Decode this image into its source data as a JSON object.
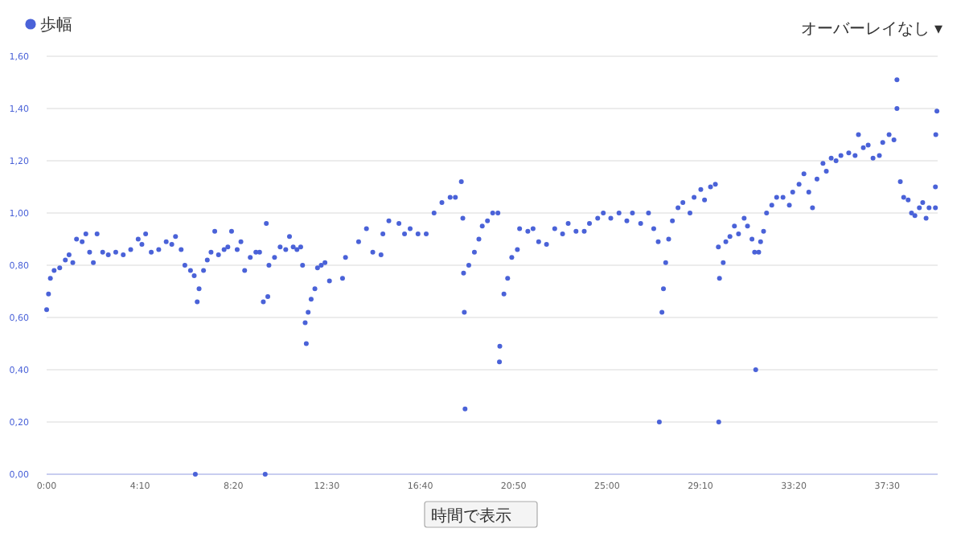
{
  "chart_data": {
    "type": "scatter",
    "marker": "circle",
    "grid": "y",
    "legend": "top left",
    "annotations": [
      "オーバーレイなし ▾",
      "時間で表示"
    ],
    "xlim": [
      0,
      2385
    ],
    "ylim": [
      0,
      1.6
    ],
    "xticks": [
      {
        "value": 0,
        "label": "0:00"
      },
      {
        "value": 250,
        "label": "4:10"
      },
      {
        "value": 500,
        "label": "8:20"
      },
      {
        "value": 750,
        "label": "12:30"
      },
      {
        "value": 1000,
        "label": "16:40"
      },
      {
        "value": 1250,
        "label": "20:50"
      },
      {
        "value": 1500,
        "label": "25:00"
      },
      {
        "value": 1750,
        "label": "29:10"
      },
      {
        "value": 2000,
        "label": "33:20"
      },
      {
        "value": 2250,
        "label": "37:30"
      }
    ],
    "yticks": [
      {
        "value": 0,
        "label": "0,00"
      },
      {
        "value": 0.2,
        "label": "0,20"
      },
      {
        "value": 0.4,
        "label": "0,40"
      },
      {
        "value": 0.6,
        "label": "0,60"
      },
      {
        "value": 0.8,
        "label": "0,80"
      },
      {
        "value": 1.0,
        "label": "1,00"
      },
      {
        "value": 1.2,
        "label": "1,20"
      },
      {
        "value": 1.4,
        "label": "1,40"
      },
      {
        "value": 1.6,
        "label": "1,60"
      }
    ],
    "series": [
      {
        "name": "歩幅",
        "color": "#4a62d8",
        "x": [
          0,
          5,
          10,
          20,
          35,
          50,
          60,
          70,
          80,
          95,
          105,
          115,
          125,
          135,
          150,
          165,
          185,
          205,
          225,
          245,
          255,
          265,
          280,
          300,
          320,
          335,
          345,
          360,
          370,
          385,
          395,
          398,
          403,
          408,
          420,
          430,
          440,
          450,
          460,
          475,
          485,
          495,
          510,
          520,
          530,
          545,
          560,
          570,
          580,
          585,
          588,
          592,
          595,
          610,
          625,
          640,
          650,
          660,
          670,
          680,
          685,
          692,
          695,
          700,
          708,
          718,
          725,
          735,
          745,
          757,
          792,
          800,
          835,
          856,
          873,
          895,
          900,
          916,
          943,
          958,
          973,
          994,
          1016,
          1037,
          1058,
          1080,
          1094,
          1110,
          1114,
          1116,
          1118,
          1120,
          1130,
          1145,
          1157,
          1166,
          1180,
          1194,
          1208,
          1212,
          1213,
          1224,
          1234,
          1245,
          1260,
          1266,
          1288,
          1302,
          1317,
          1338,
          1360,
          1381,
          1396,
          1417,
          1439,
          1453,
          1475,
          1490,
          1510,
          1532,
          1553,
          1568,
          1590,
          1611,
          1625,
          1637,
          1640,
          1647,
          1651,
          1657,
          1665,
          1675,
          1690,
          1703,
          1722,
          1733,
          1751,
          1761,
          1777,
          1790,
          1798,
          1799,
          1801,
          1811,
          1818,
          1829,
          1841,
          1852,
          1867,
          1876,
          1888,
          1895,
          1898,
          1906,
          1911,
          1919,
          1927,
          1941,
          1954,
          1971,
          1988,
          1997,
          2014,
          2027,
          2040,
          2050,
          2062,
          2078,
          2087,
          2100,
          2113,
          2126,
          2147,
          2164,
          2173,
          2186,
          2199,
          2212,
          2229,
          2238,
          2255,
          2268,
          2276,
          2276,
          2285,
          2294,
          2306,
          2315,
          2324,
          2336,
          2345,
          2354,
          2362,
          2379,
          2379,
          2380,
          2383
        ],
        "values": [
          0.63,
          0.69,
          0.75,
          0.78,
          0.79,
          0.82,
          0.84,
          0.81,
          0.9,
          0.89,
          0.92,
          0.85,
          0.81,
          0.92,
          0.85,
          0.84,
          0.85,
          0.84,
          0.86,
          0.9,
          0.88,
          0.92,
          0.85,
          0.86,
          0.89,
          0.88,
          0.91,
          0.86,
          0.8,
          0.78,
          0.76,
          0,
          0.66,
          0.71,
          0.78,
          0.82,
          0.85,
          0.93,
          0.84,
          0.86,
          0.87,
          0.93,
          0.86,
          0.89,
          0.78,
          0.83,
          0.85,
          0.85,
          0.66,
          0,
          0.96,
          0.68,
          0.8,
          0.83,
          0.87,
          0.86,
          0.91,
          0.87,
          0.86,
          0.87,
          0.8,
          0.58,
          0.5,
          0.62,
          0.67,
          0.71,
          0.79,
          0.8,
          0.81,
          0.74,
          0.75,
          0.83,
          0.89,
          0.94,
          0.85,
          0.84,
          0.92,
          0.97,
          0.96,
          0.92,
          0.94,
          0.92,
          0.92,
          1.0,
          1.04,
          1.06,
          1.06,
          1.12,
          0.98,
          0.77,
          0.62,
          0.25,
          0.8,
          0.85,
          0.9,
          0.95,
          0.97,
          1.0,
          1.0,
          0.43,
          0.49,
          0.69,
          0.75,
          0.83,
          0.86,
          0.94,
          0.93,
          0.94,
          0.89,
          0.88,
          0.94,
          0.92,
          0.96,
          0.93,
          0.93,
          0.96,
          0.98,
          1.0,
          0.98,
          1.0,
          0.97,
          1.0,
          0.96,
          1.0,
          0.94,
          0.89,
          0.2,
          0.62,
          0.71,
          0.81,
          0.9,
          0.97,
          1.02,
          1.04,
          1.0,
          1.06,
          1.09,
          1.05,
          1.1,
          1.11,
          0.87,
          0.2,
          0.75,
          0.81,
          0.89,
          0.91,
          0.95,
          0.92,
          0.98,
          0.95,
          0.9,
          0.85,
          0.4,
          0.85,
          0.89,
          0.93,
          1.0,
          1.03,
          1.06,
          1.06,
          1.03,
          1.08,
          1.11,
          1.15,
          1.08,
          1.02,
          1.13,
          1.19,
          1.16,
          1.21,
          1.2,
          1.22,
          1.23,
          1.22,
          1.3,
          1.25,
          1.26,
          1.21,
          1.22,
          1.27,
          1.3,
          1.28,
          1.51,
          1.4,
          1.12,
          1.06,
          1.05,
          1.0,
          0.99,
          1.02,
          1.04,
          0.98,
          1.02,
          1.02,
          1.1,
          1.3,
          1.39
        ]
      }
    ]
  }
}
